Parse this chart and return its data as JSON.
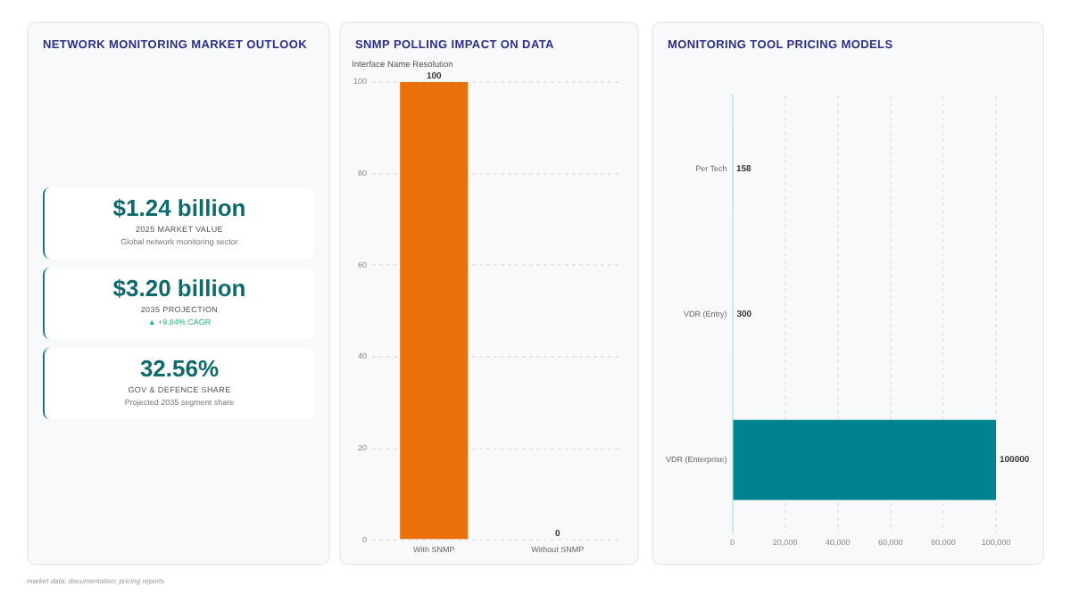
{
  "chart_data": [
    {
      "type": "other",
      "title": "NETWORK MONITORING MARKET OUTLOOK",
      "annotations": [
        "$1.24 billion",
        "2025 MARKET VALUE",
        "Global network monitoring sector",
        "$3.20 billion",
        "2035 PROJECTION",
        "▲ +9.84% CAGR",
        "32.56%",
        "GOV & DEFENCE SHARE",
        "Projected 2035 segment share"
      ]
    },
    {
      "type": "bar",
      "title": "SNMP POLLING IMPACT ON DATA",
      "ylabel": "Interface Name Resolution",
      "categories": [
        "With SNMP",
        "Without SNMP"
      ],
      "values": [
        100,
        0
      ],
      "color": "#e8710a",
      "ylim": [
        0,
        100
      ],
      "yticks": [
        0,
        20,
        40,
        60,
        80,
        100
      ],
      "grid": "y",
      "legend": false,
      "data_labels": true
    },
    {
      "type": "bar",
      "orientation": "horizontal",
      "title": "MONITORING TOOL PRICING MODELS",
      "categories": [
        "Per Tech",
        "VDR (Entry)",
        "VDR (Enterprise)"
      ],
      "values": [
        158,
        300,
        100000
      ],
      "colors": [
        "#a8d8e0",
        "#a8d8e0",
        "#00838f"
      ],
      "xlim": [
        0,
        100000
      ],
      "xticks": [
        0,
        {
          "value": 20000,
          "label": "20,000"
        },
        {
          "value": 40000,
          "label": "40,000"
        },
        {
          "value": 60000,
          "label": "60,000"
        },
        {
          "value": 80000,
          "label": "80,000"
        },
        {
          "value": 100000,
          "label": "100,000"
        }
      ],
      "grid": "x",
      "legend": false,
      "data_labels": true,
      "annotations": [
        "market data; documentation; pricing reports"
      ]
    }
  ]
}
